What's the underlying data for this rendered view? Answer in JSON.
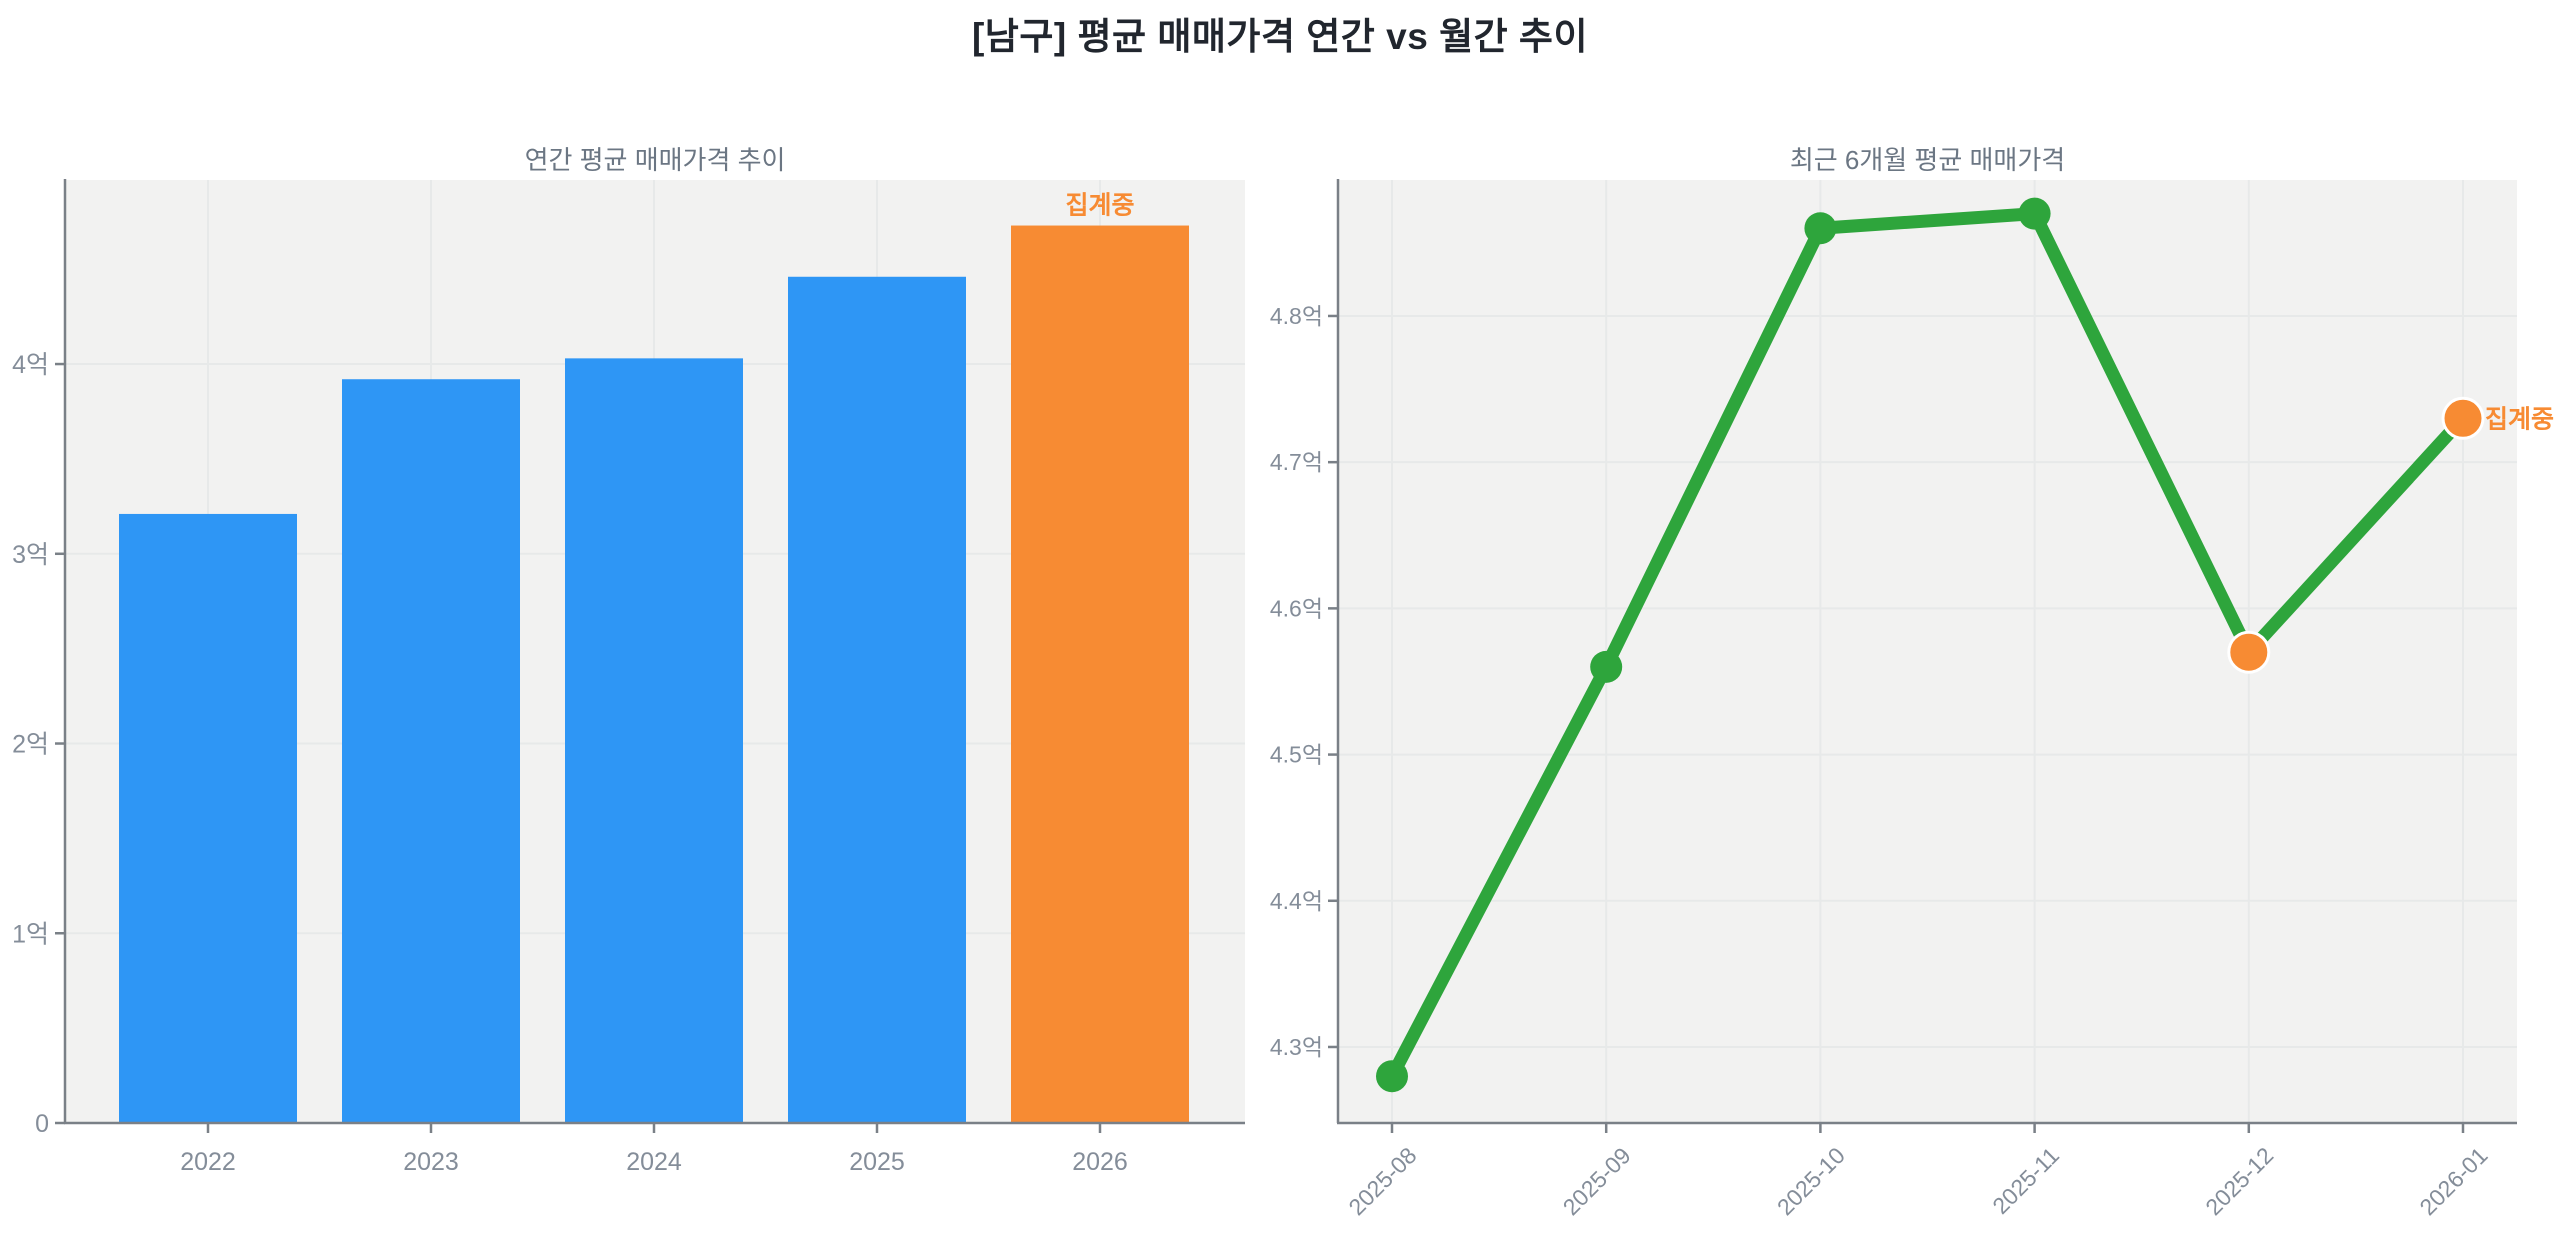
{
  "figure": {
    "title": "[남구] 평균 매매가격 연간 vs 월간 추이",
    "in_progress_label": "집계중"
  },
  "colors": {
    "bar_blue": "#2e96f5",
    "accent_orange": "#f78b33",
    "line_green": "#2ea53c",
    "plot_background": "#f2f2f1",
    "grid": "#e7e9e9",
    "spine": "#7a8087",
    "tick_text": "#848d99",
    "subtitle_text": "#6b7683",
    "title_text": "#21262e"
  },
  "chart_data": [
    {
      "type": "bar",
      "title": "연간 평균 매매가격 추이",
      "unit": "억",
      "categories": [
        "2022",
        "2023",
        "2024",
        "2025",
        "2026"
      ],
      "values": [
        3.21,
        3.92,
        4.03,
        4.46,
        4.73
      ],
      "bar_colors": [
        "blue",
        "blue",
        "blue",
        "blue",
        "orange"
      ],
      "ytick_values": [
        0,
        1,
        2,
        3,
        4
      ],
      "ytick_labels": [
        "0",
        "1억",
        "2억",
        "3억",
        "4억"
      ],
      "ylim": [
        0,
        4.97
      ],
      "grid": true,
      "legend": "none",
      "annotation": {
        "text": "집계중",
        "category": "2026"
      }
    },
    {
      "type": "line",
      "title": "최근 6개월 평균 매매가격",
      "unit": "억",
      "x": [
        "2025-08",
        "2025-09",
        "2025-10",
        "2025-11",
        "2025-12",
        "2026-01"
      ],
      "values": [
        4.28,
        4.56,
        4.86,
        4.87,
        4.57,
        4.73
      ],
      "point_colors": [
        "green",
        "green",
        "green",
        "green",
        "orange",
        "orange"
      ],
      "ytick_values": [
        4.3,
        4.4,
        4.5,
        4.6,
        4.7,
        4.8
      ],
      "ytick_labels": [
        "4.3억",
        "4.4억",
        "4.5억",
        "4.6억",
        "4.7억",
        "4.8억"
      ],
      "ylim": [
        4.248,
        4.893
      ],
      "grid": true,
      "legend": "none",
      "annotation": {
        "text": "집계중",
        "x": "2026-01"
      }
    }
  ]
}
